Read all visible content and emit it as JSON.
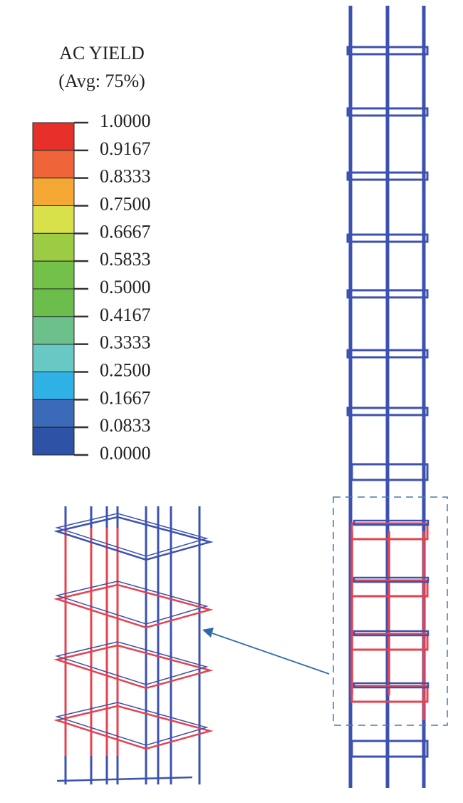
{
  "legend": {
    "title": "AC YIELD",
    "subtitle": "(Avg: 75%)",
    "labels": [
      "1.0000",
      "0.9167",
      "0.8333",
      "0.7500",
      "0.6667",
      "0.5833",
      "0.5000",
      "0.4167",
      "0.3333",
      "0.2500",
      "0.1667",
      "0.0833",
      "0.0000"
    ],
    "colors": [
      "#e8302a",
      "#f0643a",
      "#f5a733",
      "#d8e04a",
      "#9ccb44",
      "#74c14a",
      "#6bbd4c",
      "#6cc18a",
      "#68c9c4",
      "#2fb1e6",
      "#3a6ab8",
      "#2e52a6"
    ]
  }
}
